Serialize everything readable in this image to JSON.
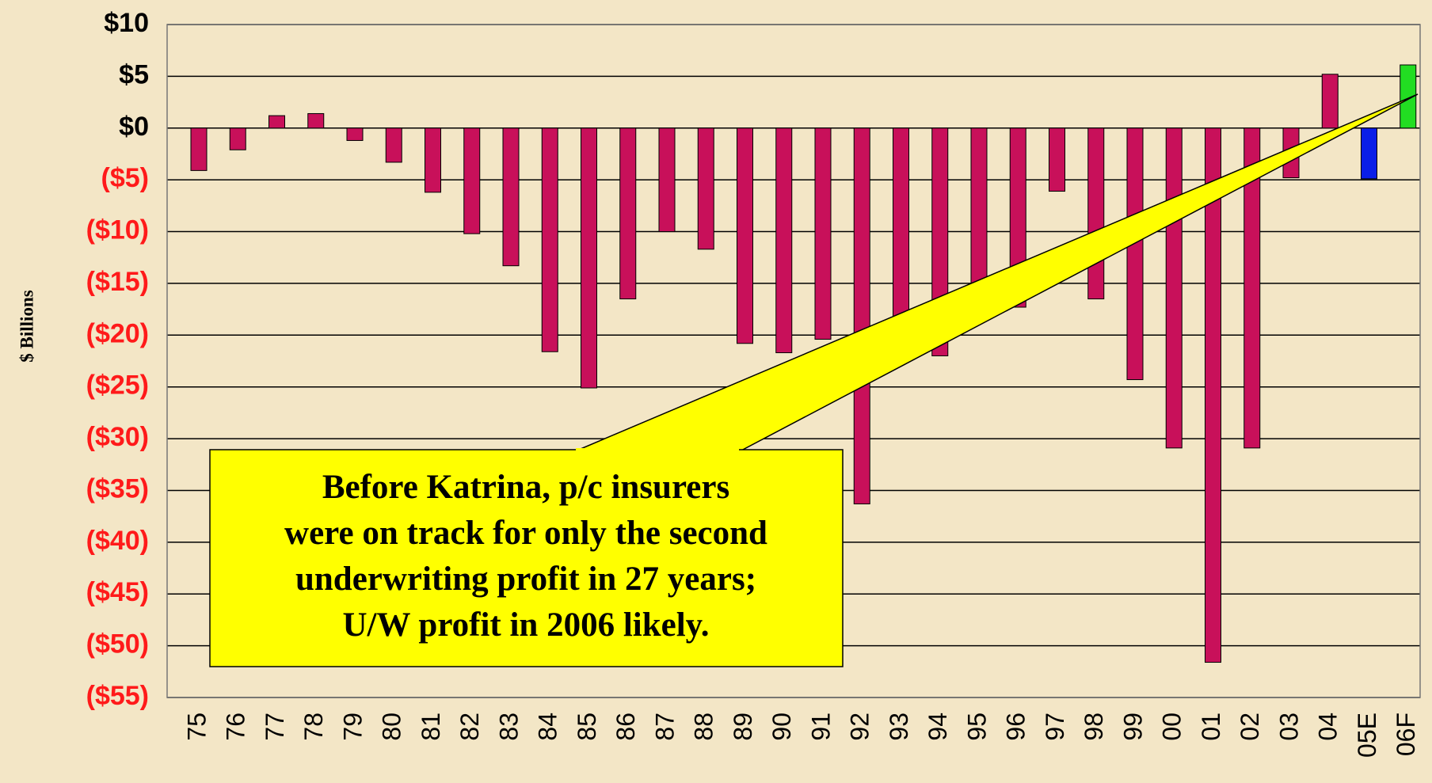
{
  "chart_data": {
    "type": "bar",
    "y_axis_label": "$ Billions",
    "categories": [
      "75",
      "76",
      "77",
      "78",
      "79",
      "80",
      "81",
      "82",
      "83",
      "84",
      "85",
      "86",
      "87",
      "88",
      "89",
      "90",
      "91",
      "92",
      "93",
      "94",
      "95",
      "96",
      "97",
      "98",
      "99",
      "00",
      "01",
      "02",
      "03",
      "04",
      "05E",
      "06F"
    ],
    "values": [
      -4.1,
      -2.1,
      1.2,
      1.4,
      -1.2,
      -3.3,
      -6.2,
      -10.2,
      -13.3,
      -21.6,
      -25.1,
      -16.5,
      -10.0,
      -11.7,
      -20.8,
      -21.7,
      -20.4,
      -36.3,
      -20.0,
      -22.0,
      -17.4,
      -17.3,
      -6.1,
      -16.5,
      -24.3,
      -30.9,
      -51.6,
      -30.9,
      -4.8,
      5.2,
      -4.9,
      6.1
    ],
    "colors": [
      "#c8105a",
      "#c8105a",
      "#c8105a",
      "#c8105a",
      "#c8105a",
      "#c8105a",
      "#c8105a",
      "#c8105a",
      "#c8105a",
      "#c8105a",
      "#c8105a",
      "#c8105a",
      "#c8105a",
      "#c8105a",
      "#c8105a",
      "#c8105a",
      "#c8105a",
      "#c8105a",
      "#c8105a",
      "#c8105a",
      "#c8105a",
      "#c8105a",
      "#c8105a",
      "#c8105a",
      "#c8105a",
      "#c8105a",
      "#c8105a",
      "#c8105a",
      "#c8105a",
      "#c8105a",
      "#0a1ee8",
      "#22dd22"
    ],
    "ylim": [
      -55,
      10
    ],
    "yticks": [
      {
        "value": 10,
        "label": "$10"
      },
      {
        "value": 5,
        "label": "$5"
      },
      {
        "value": 0,
        "label": "$0"
      },
      {
        "value": -5,
        "label": "($5)"
      },
      {
        "value": -10,
        "label": "($10)"
      },
      {
        "value": -15,
        "label": "($15)"
      },
      {
        "value": -20,
        "label": "($20)"
      },
      {
        "value": -25,
        "label": "($25)"
      },
      {
        "value": -30,
        "label": "($30)"
      },
      {
        "value": -35,
        "label": "($35)"
      },
      {
        "value": -40,
        "label": "($40)"
      },
      {
        "value": -45,
        "label": "($45)"
      },
      {
        "value": -50,
        "label": "($50)"
      },
      {
        "value": -55,
        "label": "($55)"
      }
    ],
    "tick_color": "#000000",
    "negative_tick_color": "#ff1a1a",
    "grid": true,
    "annotation": [
      "Before Katrina, p/c insurers",
      "were on track for only the second",
      "underwriting profit in 27 years;",
      "U/W profit in 2006 likely."
    ]
  }
}
